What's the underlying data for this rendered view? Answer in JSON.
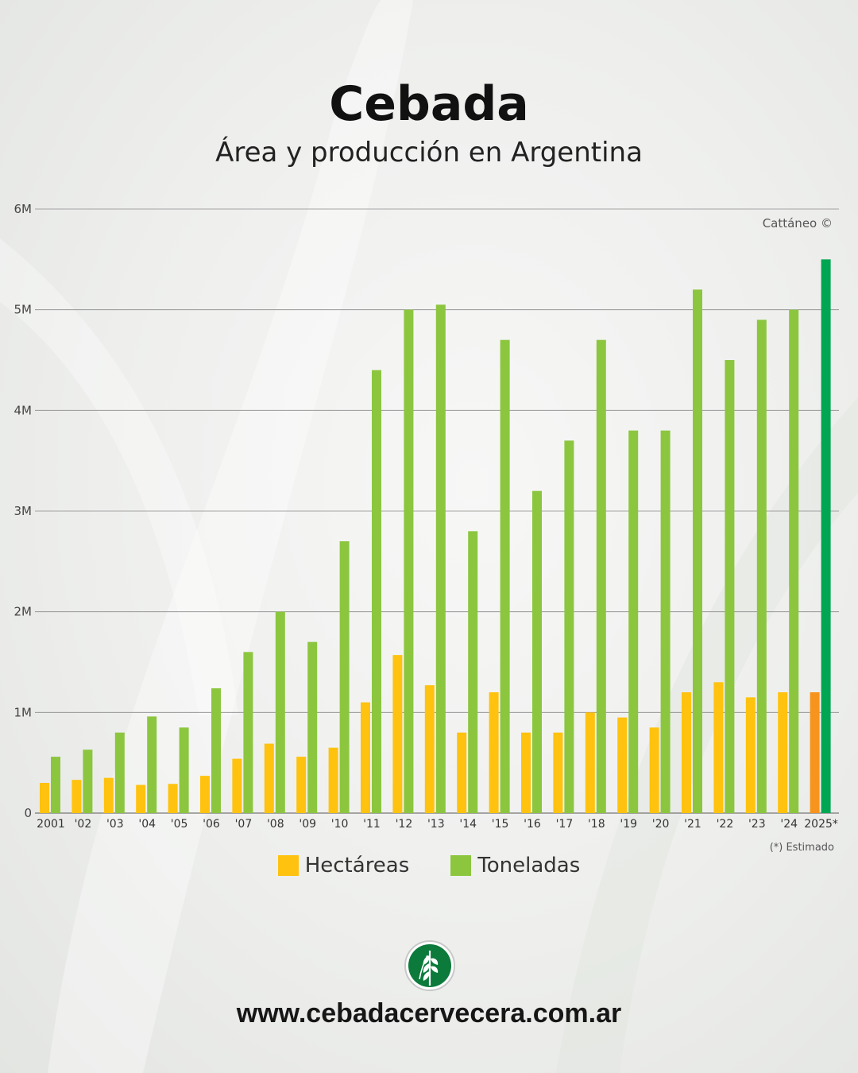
{
  "header": {
    "title": "Cebada",
    "subtitle": "Área y producción en Argentina"
  },
  "credit": "Cattáneo ©",
  "footnote": "(*) Estimado",
  "website": "www.cebadacervecera.com.ar",
  "colors": {
    "hectareas": "#ffc20e",
    "toneladas": "#8cc63f",
    "hectareas_estimado": "#f7941d",
    "toneladas_estimado": "#00a651"
  },
  "chart_data": {
    "type": "bar",
    "title": "Cebada",
    "subtitle": "Área y producción en Argentina",
    "categories": [
      "2001",
      "'02",
      "'03",
      "'04",
      "'05",
      "'06",
      "'07",
      "'08",
      "'09",
      "'10",
      "'11",
      "'12",
      "'13",
      "'14",
      "'15",
      "'16",
      "'17",
      "'18",
      "'19",
      "'20",
      "'21",
      "'22",
      "'23",
      "'24",
      "2025*"
    ],
    "series": [
      {
        "name": "Hectáreas",
        "values": [
          300000,
          330000,
          350000,
          280000,
          290000,
          370000,
          540000,
          690000,
          560000,
          650000,
          1100000,
          1570000,
          1270000,
          800000,
          1200000,
          800000,
          800000,
          1000000,
          950000,
          850000,
          1200000,
          1300000,
          1150000,
          1200000,
          1200000
        ]
      },
      {
        "name": "Toneladas",
        "values": [
          560000,
          630000,
          800000,
          960000,
          850000,
          1240000,
          1600000,
          2000000,
          1700000,
          2700000,
          4400000,
          5000000,
          5050000,
          2800000,
          4700000,
          3200000,
          3700000,
          4700000,
          3800000,
          3800000,
          5200000,
          4500000,
          4900000,
          5000000,
          5500000
        ]
      }
    ],
    "y_ticks": [
      "0",
      "1M",
      "2M",
      "3M",
      "4M",
      "5M",
      "6M"
    ],
    "ylim": [
      0,
      6000000
    ],
    "grid": true,
    "legend": "bottom-center",
    "estimated_category": "2025*"
  }
}
